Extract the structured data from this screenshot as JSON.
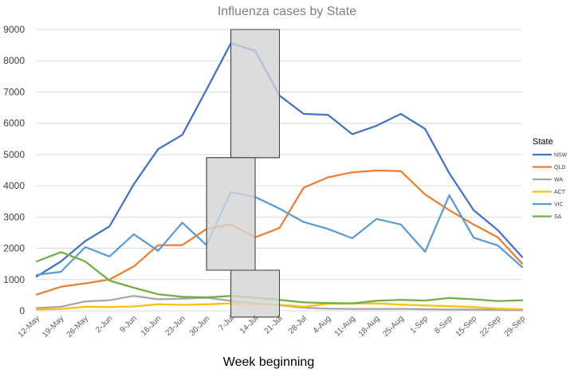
{
  "chart_data": {
    "type": "line",
    "title": "Influenza cases by State",
    "xlabel": "Week beginning",
    "ylabel": "",
    "ylim": [
      0,
      9000
    ],
    "ytick_step": 1000,
    "grid": true,
    "legend_title": "State",
    "legend_position": "right",
    "categories": [
      "12-May",
      "19-May",
      "26-May",
      "2-Jun",
      "9-Jun",
      "16-Jun",
      "23-Jun",
      "30-Jun",
      "7-Jul",
      "14-Jul",
      "21-Jul",
      "28-Jul",
      "4-Aug",
      "11-Aug",
      "18-Aug",
      "25-Aug",
      "1-Sep",
      "8-Sep",
      "15-Sep",
      "22-Sep",
      "29-Sep"
    ],
    "series": [
      {
        "name": "NSW",
        "color": "#4472c4",
        "values": [
          1100,
          1580,
          2230,
          2700,
          4050,
          5170,
          5630,
          7080,
          8560,
          8320,
          6890,
          6300,
          6270,
          5650,
          5920,
          6300,
          5820,
          4400,
          3220,
          2580,
          1720
        ]
      },
      {
        "name": "QLD",
        "color": "#ed7d31",
        "values": [
          520,
          770,
          880,
          1000,
          1420,
          2100,
          2100,
          2620,
          2770,
          2350,
          2650,
          3940,
          4270,
          4430,
          4490,
          4470,
          3720,
          3220,
          2760,
          2350,
          1510
        ]
      },
      {
        "name": "WA",
        "color": "#a5a5a5",
        "values": [
          90,
          130,
          300,
          340,
          480,
          370,
          390,
          420,
          320,
          240,
          180,
          100,
          70,
          60,
          60,
          60,
          50,
          40,
          40,
          30,
          20
        ]
      },
      {
        "name": "ACT",
        "color": "#ffc000",
        "values": [
          40,
          60,
          130,
          120,
          140,
          210,
          190,
          210,
          240,
          220,
          200,
          130,
          230,
          230,
          240,
          200,
          170,
          150,
          120,
          70,
          50
        ]
      },
      {
        "name": "VIC",
        "color": "#5b9bd5",
        "values": [
          1150,
          1250,
          2040,
          1740,
          2450,
          1920,
          2820,
          2100,
          3800,
          3640,
          3270,
          2840,
          2620,
          2320,
          2940,
          2760,
          1890,
          3700,
          2340,
          2090,
          1400
        ]
      },
      {
        "name": "SA",
        "color": "#70ad47",
        "values": [
          1580,
          1880,
          1580,
          970,
          740,
          530,
          450,
          430,
          480,
          420,
          350,
          270,
          250,
          240,
          320,
          350,
          330,
          410,
          370,
          310,
          340
        ]
      }
    ],
    "highlight_boxes": [
      {
        "x_from": "7-Jul",
        "x_to": "21-Jul",
        "y_from": 4900,
        "y_to": 9000
      },
      {
        "x_from": "30-Jun",
        "x_to": "14-Jul",
        "y_from": 1300,
        "y_to": 4900
      },
      {
        "x_from": "7-Jul",
        "x_to": "21-Jul",
        "y_from": -200,
        "y_to": 1300
      }
    ]
  }
}
